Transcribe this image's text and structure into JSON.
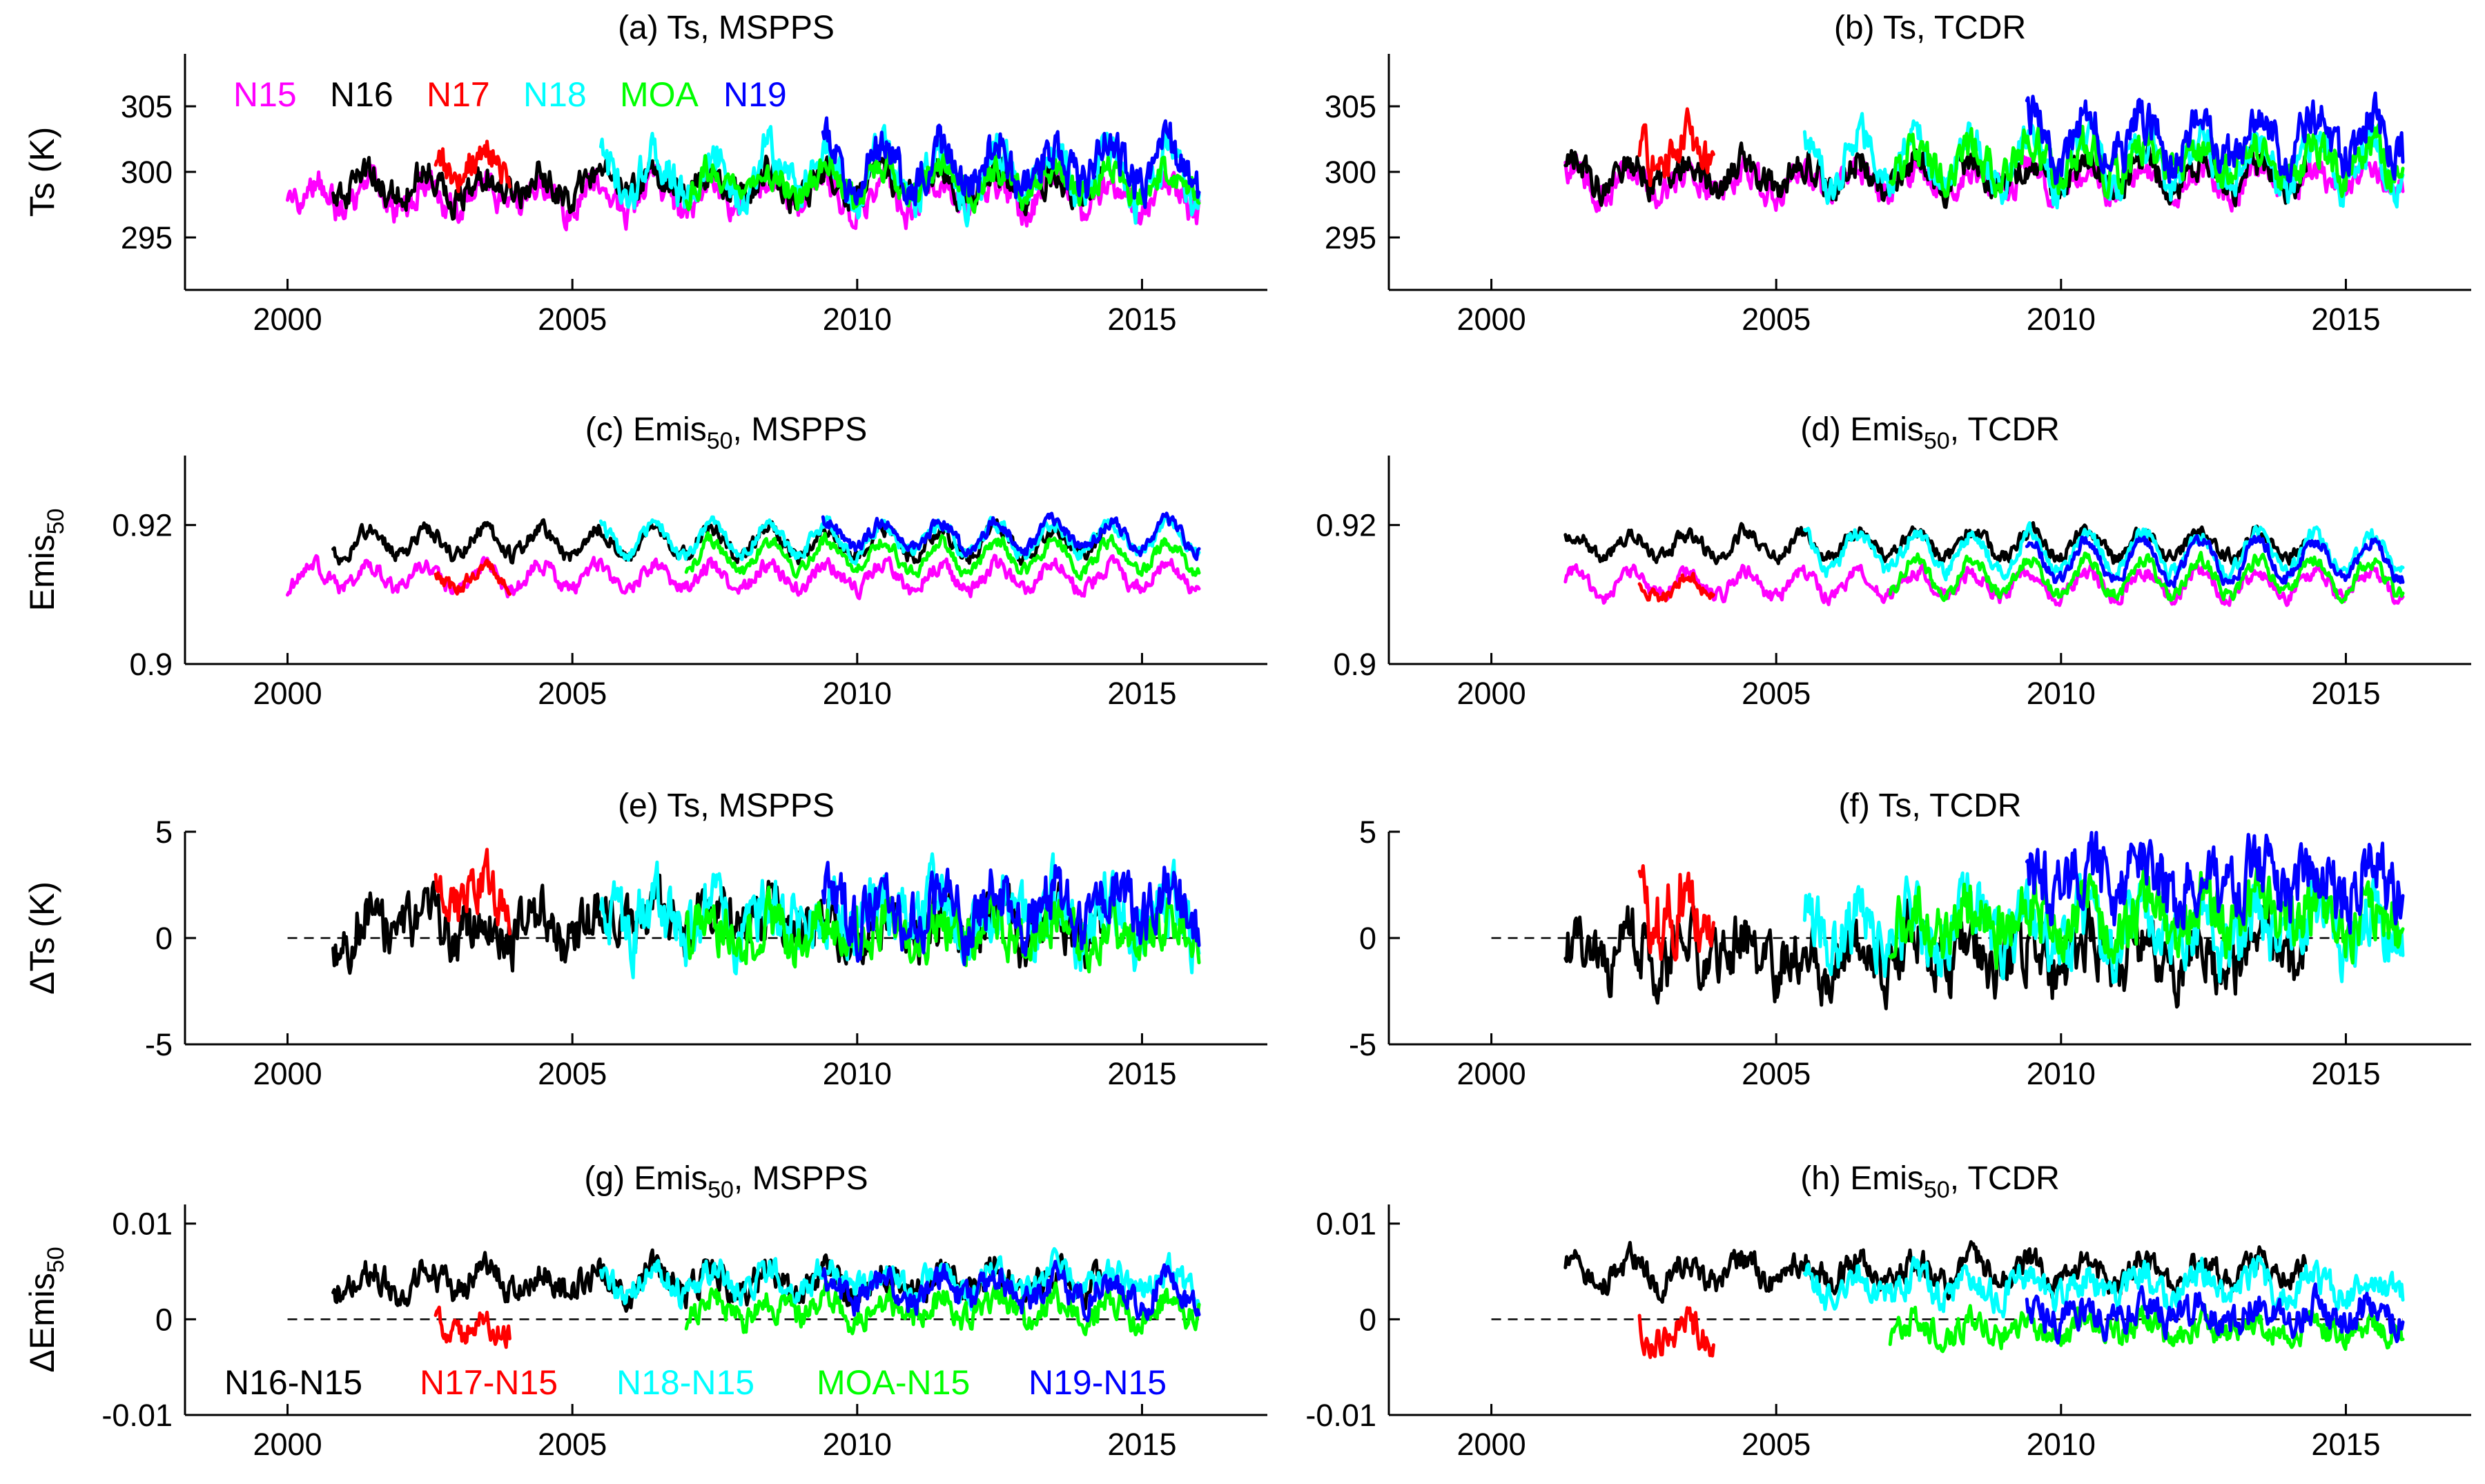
{
  "figure": {
    "colors": {
      "N15": "#ff00ff",
      "N16": "#000000",
      "N17": "#ff0000",
      "N18": "#00ffff",
      "MOA": "#00ff00",
      "N19": "#0000ff"
    }
  },
  "chart_data": [
    {
      "id": "a",
      "type": "line",
      "title": "(a) Ts, MSPPS",
      "title_parts": [
        "(a) Ts, MSPPS"
      ],
      "xlabel": "",
      "ylabel": "Ts (K)",
      "ylabel_sub": "",
      "xlim": [
        1998.2,
        2017.2
      ],
      "ylim": [
        291,
        309
      ],
      "xticks": [
        2000,
        2005,
        2010,
        2015
      ],
      "xtick_labels": [
        "2000",
        "2005",
        "2010",
        "2015"
      ],
      "yticks": [
        295,
        300,
        305
      ],
      "ytick_labels": [
        "295",
        "300",
        "305"
      ],
      "zero_line": false,
      "legend": {
        "placement": "top-left",
        "entries": [
          "N15",
          "N16",
          "N17",
          "N18",
          "MOA",
          "N19"
        ]
      },
      "series": [
        {
          "name": "N15",
          "key": "N15",
          "start": 2000.0,
          "end": 2016.0,
          "mean": 298.2,
          "amp": 1.2,
          "noise": 1.0
        },
        {
          "name": "N16",
          "key": "N16",
          "start": 2000.8,
          "end": 2014.3,
          "mean": 299.0,
          "amp": 1.0,
          "noise": 1.0
        },
        {
          "name": "N17",
          "key": "N17",
          "start": 2002.6,
          "end": 2003.9,
          "mean": 300.8,
          "amp": 1.0,
          "noise": 1.0
        },
        {
          "name": "N18",
          "key": "N18",
          "start": 2005.5,
          "end": 2016.0,
          "mean": 299.8,
          "amp": 1.8,
          "noise": 1.3
        },
        {
          "name": "MOA",
          "key": "MOA",
          "start": 2007.0,
          "end": 2016.0,
          "mean": 299.2,
          "amp": 1.0,
          "noise": 0.9
        },
        {
          "name": "N19",
          "key": "N19",
          "start": 2009.4,
          "end": 2016.0,
          "mean": 300.4,
          "amp": 1.8,
          "noise": 1.4
        }
      ]
    },
    {
      "id": "b",
      "type": "line",
      "title": "(b) Ts, TCDR",
      "title_parts": [
        "(b) Ts, TCDR"
      ],
      "xlabel": "",
      "ylabel": "",
      "ylabel_sub": "",
      "xlim": [
        1998.2,
        2017.2
      ],
      "ylim": [
        291,
        309
      ],
      "xticks": [
        2000,
        2005,
        2010,
        2015
      ],
      "xtick_labels": [
        "2000",
        "2005",
        "2010",
        "2015"
      ],
      "yticks": [
        295,
        300,
        305
      ],
      "ytick_labels": [
        "295",
        "300",
        "305"
      ],
      "zero_line": false,
      "series": [
        {
          "name": "N15",
          "key": "N15",
          "start": 2001.3,
          "end": 2016.0,
          "mean": 299.3,
          "amp": 1.0,
          "noise": 0.9
        },
        {
          "name": "N16",
          "key": "N16",
          "start": 2001.3,
          "end": 2014.3,
          "mean": 299.8,
          "amp": 1.0,
          "noise": 1.0
        },
        {
          "name": "N17",
          "key": "N17",
          "start": 2002.6,
          "end": 2003.9,
          "mean": 301.5,
          "amp": 1.2,
          "noise": 1.3
        },
        {
          "name": "N18",
          "key": "N18",
          "start": 2005.5,
          "end": 2016.0,
          "mean": 300.8,
          "amp": 1.8,
          "noise": 1.2
        },
        {
          "name": "MOA",
          "key": "MOA",
          "start": 2007.0,
          "end": 2016.0,
          "mean": 300.8,
          "amp": 1.2,
          "noise": 1.2
        },
        {
          "name": "N19",
          "key": "N19",
          "start": 2009.4,
          "end": 2016.0,
          "mean": 302.6,
          "amp": 1.8,
          "noise": 1.4
        }
      ]
    },
    {
      "id": "c",
      "type": "line",
      "title": "(c) Emis50, MSPPS",
      "title_parts": [
        "(c) Emis",
        "50",
        ", MSPPS"
      ],
      "xlabel": "",
      "ylabel": "Emis",
      "ylabel_sub": "50",
      "xlim": [
        1998.2,
        2017.2
      ],
      "ylim": [
        0.9,
        0.93
      ],
      "xticks": [
        2000,
        2005,
        2010,
        2015
      ],
      "xtick_labels": [
        "2000",
        "2005",
        "2010",
        "2015"
      ],
      "yticks": [
        0.9,
        0.92
      ],
      "ytick_labels": [
        "0.9",
        "0.92"
      ],
      "zero_line": false,
      "series": [
        {
          "name": "N15",
          "key": "N15",
          "start": 2000.0,
          "end": 2016.0,
          "mean": 0.9125,
          "amp": 0.0018,
          "noise": 0.0009
        },
        {
          "name": "N16",
          "key": "N16",
          "start": 2000.8,
          "end": 2014.3,
          "mean": 0.9175,
          "amp": 0.002,
          "noise": 0.0009
        },
        {
          "name": "N17",
          "key": "N17",
          "start": 2002.6,
          "end": 2003.9,
          "mean": 0.9125,
          "amp": 0.0015,
          "noise": 0.0008
        },
        {
          "name": "N18",
          "key": "N18",
          "start": 2005.5,
          "end": 2016.0,
          "mean": 0.918,
          "amp": 0.0022,
          "noise": 0.0008
        },
        {
          "name": "MOA",
          "key": "MOA",
          "start": 2007.0,
          "end": 2016.0,
          "mean": 0.9155,
          "amp": 0.0022,
          "noise": 0.0008
        },
        {
          "name": "N19",
          "key": "N19",
          "start": 2009.4,
          "end": 2016.0,
          "mean": 0.9185,
          "amp": 0.002,
          "noise": 0.0008
        }
      ]
    },
    {
      "id": "d",
      "type": "line",
      "title": "(d) Emis50, TCDR",
      "title_parts": [
        "(d) Emis",
        "50",
        ", TCDR"
      ],
      "xlabel": "",
      "ylabel": "",
      "ylabel_sub": "",
      "xlim": [
        1998.2,
        2017.2
      ],
      "ylim": [
        0.9,
        0.93
      ],
      "xticks": [
        2000,
        2005,
        2010,
        2015
      ],
      "xtick_labels": [
        "2000",
        "2005",
        "2010",
        "2015"
      ],
      "yticks": [
        0.9,
        0.92
      ],
      "ytick_labels": [
        "0.9",
        "0.92"
      ],
      "zero_line": false,
      "series": [
        {
          "name": "N15",
          "key": "N15",
          "start": 2001.3,
          "end": 2016.0,
          "mean": 0.9115,
          "amp": 0.0018,
          "noise": 0.0009
        },
        {
          "name": "N16",
          "key": "N16",
          "start": 2001.3,
          "end": 2014.3,
          "mean": 0.9172,
          "amp": 0.0018,
          "noise": 0.0009
        },
        {
          "name": "N17",
          "key": "N17",
          "start": 2002.6,
          "end": 2003.9,
          "mean": 0.911,
          "amp": 0.0015,
          "noise": 0.0008
        },
        {
          "name": "N18",
          "key": "N18",
          "start": 2005.5,
          "end": 2016.0,
          "mean": 0.916,
          "amp": 0.0028,
          "noise": 0.0009
        },
        {
          "name": "MOA",
          "key": "MOA",
          "start": 2007.0,
          "end": 2016.0,
          "mean": 0.9125,
          "amp": 0.0025,
          "noise": 0.0008
        },
        {
          "name": "N19",
          "key": "N19",
          "start": 2009.4,
          "end": 2016.0,
          "mean": 0.915,
          "amp": 0.0028,
          "noise": 0.0008
        }
      ]
    },
    {
      "id": "e",
      "type": "line",
      "title": "(e) Ts, MSPPS",
      "title_parts": [
        "(e) Ts, MSPPS"
      ],
      "xlabel": "",
      "ylabel": "ΔTs (K)",
      "ylabel_sub": "",
      "xlim": [
        1998.2,
        2017.2
      ],
      "ylim": [
        -5,
        5
      ],
      "xticks": [
        2000,
        2005,
        2010,
        2015
      ],
      "xtick_labels": [
        "2000",
        "2005",
        "2010",
        "2015"
      ],
      "yticks": [
        -5,
        0,
        5
      ],
      "ytick_labels": [
        "-5",
        "0",
        "5"
      ],
      "zero_line": true,
      "series": [
        {
          "name": "N16-N15",
          "key": "N16",
          "start": 2000.8,
          "end": 2014.3,
          "mean": 0.6,
          "amp": 0.6,
          "noise": 1.1
        },
        {
          "name": "N17-N15",
          "key": "N17",
          "start": 2002.6,
          "end": 2003.9,
          "mean": 2.0,
          "amp": 0.8,
          "noise": 1.0
        },
        {
          "name": "N18-N15",
          "key": "N18",
          "start": 2005.5,
          "end": 2016.0,
          "mean": 1.0,
          "amp": 0.8,
          "noise": 1.3
        },
        {
          "name": "MOA-N15",
          "key": "MOA",
          "start": 2007.0,
          "end": 2016.0,
          "mean": 0.3,
          "amp": 0.5,
          "noise": 1.0
        },
        {
          "name": "N19-N15",
          "key": "N19",
          "start": 2009.4,
          "end": 2016.0,
          "mean": 1.4,
          "amp": 0.8,
          "noise": 1.2
        }
      ]
    },
    {
      "id": "f",
      "type": "line",
      "title": "(f) Ts, TCDR",
      "title_parts": [
        "(f) Ts, TCDR"
      ],
      "xlabel": "",
      "ylabel": "",
      "ylabel_sub": "",
      "xlim": [
        1998.2,
        2017.2
      ],
      "ylim": [
        -5,
        5
      ],
      "xticks": [
        2000,
        2005,
        2010,
        2015
      ],
      "xtick_labels": [
        "2000",
        "2005",
        "2010",
        "2015"
      ],
      "yticks": [
        -5,
        0,
        5
      ],
      "ytick_labels": [
        "-5",
        "0",
        "5"
      ],
      "zero_line": true,
      "series": [
        {
          "name": "N16-N15",
          "key": "N16",
          "start": 2001.3,
          "end": 2014.3,
          "mean": -0.8,
          "amp": 0.8,
          "noise": 1.2
        },
        {
          "name": "N17-N15",
          "key": "N17",
          "start": 2002.6,
          "end": 2003.9,
          "mean": 1.5,
          "amp": 1.0,
          "noise": 1.6
        },
        {
          "name": "N18-N15",
          "key": "N18",
          "start": 2005.5,
          "end": 2016.0,
          "mean": 0.3,
          "amp": 0.8,
          "noise": 1.3
        },
        {
          "name": "MOA-N15",
          "key": "MOA",
          "start": 2007.0,
          "end": 2016.0,
          "mean": 1.0,
          "amp": 0.7,
          "noise": 1.2
        },
        {
          "name": "N19-N15",
          "key": "N19",
          "start": 2009.4,
          "end": 2016.0,
          "mean": 2.6,
          "amp": 0.8,
          "noise": 1.3
        }
      ]
    },
    {
      "id": "g",
      "type": "line",
      "title": "(g) Emis50, MSPPS",
      "title_parts": [
        "(g) Emis",
        "50",
        ", MSPPS"
      ],
      "xlabel": "",
      "ylabel": "ΔEmis",
      "ylabel_sub": "50",
      "xlim": [
        1998.2,
        2017.2
      ],
      "ylim": [
        -0.01,
        0.012
      ],
      "xticks": [
        2000,
        2005,
        2010,
        2015
      ],
      "xtick_labels": [
        "2000",
        "2005",
        "2010",
        "2015"
      ],
      "yticks": [
        -0.01,
        0,
        0.01
      ],
      "ytick_labels": [
        "-0.01",
        "0",
        "0.01"
      ],
      "zero_line": true,
      "legend": {
        "placement": "bottom",
        "entries": [
          "N16-N15",
          "N17-N15",
          "N18-N15",
          "MOA-N15",
          "N19-N15"
        ]
      },
      "series": [
        {
          "name": "N16-N15",
          "key": "N16",
          "start": 2000.8,
          "end": 2014.3,
          "mean": 0.004,
          "amp": 0.0012,
          "noise": 0.0013
        },
        {
          "name": "N17-N15",
          "key": "N17",
          "start": 2002.6,
          "end": 2003.9,
          "mean": -0.001,
          "amp": 0.0008,
          "noise": 0.0012
        },
        {
          "name": "N18-N15",
          "key": "N18",
          "start": 2005.5,
          "end": 2016.0,
          "mean": 0.004,
          "amp": 0.0012,
          "noise": 0.0012
        },
        {
          "name": "MOA-N15",
          "key": "MOA",
          "start": 2007.0,
          "end": 2016.0,
          "mean": 0.001,
          "amp": 0.001,
          "noise": 0.0012
        },
        {
          "name": "N19-N15",
          "key": "N19",
          "start": 2009.4,
          "end": 2016.0,
          "mean": 0.003,
          "amp": 0.0012,
          "noise": 0.0013
        }
      ]
    },
    {
      "id": "h",
      "type": "line",
      "title": "(h) Emis50, TCDR",
      "title_parts": [
        "(h) Emis",
        "50",
        ", TCDR"
      ],
      "xlabel": "",
      "ylabel": "",
      "ylabel_sub": "",
      "xlim": [
        1998.2,
        2017.2
      ],
      "ylim": [
        -0.01,
        0.012
      ],
      "xticks": [
        2000,
        2005,
        2010,
        2015
      ],
      "xtick_labels": [
        "2000",
        "2005",
        "2010",
        "2015"
      ],
      "yticks": [
        -0.01,
        0,
        0.01
      ],
      "ytick_labels": [
        "-0.01",
        "0",
        "0.01"
      ],
      "zero_line": true,
      "series": [
        {
          "name": "N16-N15",
          "key": "N16",
          "start": 2001.3,
          "end": 2014.3,
          "mean": 0.005,
          "amp": 0.0012,
          "noise": 0.0012
        },
        {
          "name": "N17-N15",
          "key": "N17",
          "start": 2002.6,
          "end": 2003.9,
          "mean": -0.0015,
          "amp": 0.001,
          "noise": 0.0014
        },
        {
          "name": "N18-N15",
          "key": "N18",
          "start": 2005.5,
          "end": 2016.0,
          "mean": 0.0035,
          "amp": 0.0012,
          "noise": 0.0013
        },
        {
          "name": "MOA-N15",
          "key": "MOA",
          "start": 2007.0,
          "end": 2016.0,
          "mean": -0.001,
          "amp": 0.0008,
          "noise": 0.0012
        },
        {
          "name": "N19-N15",
          "key": "N19",
          "start": 2009.4,
          "end": 2016.0,
          "mean": 0.0005,
          "amp": 0.001,
          "noise": 0.0014
        }
      ]
    }
  ]
}
